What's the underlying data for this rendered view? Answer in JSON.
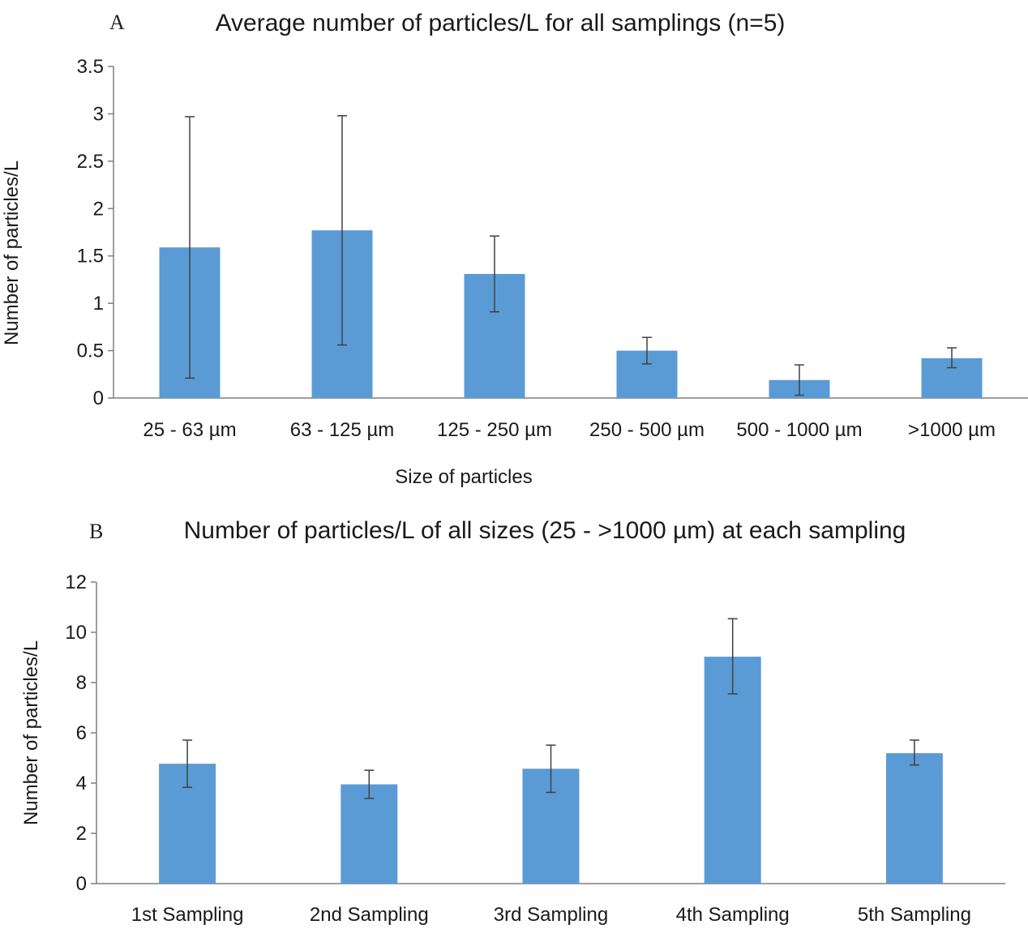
{
  "chart_data": [
    {
      "type": "bar",
      "panel_label": "A",
      "title": "Average number of particles/L for all samplings (n=5)",
      "xlabel": "Size of particles",
      "ylabel": "Number of particles/L",
      "categories": [
        "25 - 63 µm",
        "63 - 125 µm",
        "125 - 250 µm",
        "250 - 500 µm",
        "500 - 1000 µm",
        ">1000 µm"
      ],
      "values": [
        1.59,
        1.77,
        1.31,
        0.5,
        0.19,
        0.42
      ],
      "error_low": [
        0.21,
        0.56,
        0.91,
        0.36,
        0.03,
        0.32
      ],
      "error_high": [
        2.97,
        2.98,
        1.71,
        0.64,
        0.35,
        0.53
      ],
      "ylim": [
        0,
        3.5
      ],
      "yticks": [
        "0",
        "0.5",
        "1",
        "1.5",
        "2",
        "2.5",
        "3",
        "3.5"
      ],
      "ytick_values": [
        0,
        0.5,
        1,
        1.5,
        2,
        2.5,
        3,
        3.5
      ],
      "bar_color": "#5b9bd5",
      "grid": false
    },
    {
      "type": "bar",
      "panel_label": "B",
      "title": "Number of particles/L of all sizes (25 - >1000 µm) at each sampling",
      "xlabel": "",
      "ylabel": "Number of particles/L",
      "categories": [
        "1st Sampling",
        "2nd Sampling",
        "3rd Sampling",
        "4th Sampling",
        "5th Sampling"
      ],
      "values": [
        4.77,
        3.95,
        4.57,
        9.03,
        5.19
      ],
      "error_low": [
        3.83,
        3.39,
        3.63,
        7.55,
        4.72
      ],
      "error_high": [
        5.71,
        4.51,
        5.51,
        10.54,
        5.71
      ],
      "ylim": [
        0,
        12
      ],
      "yticks": [
        "0",
        "2",
        "4",
        "6",
        "8",
        "10",
        "12"
      ],
      "ytick_values": [
        0,
        2,
        4,
        6,
        8,
        10,
        12
      ],
      "bar_color": "#5b9bd5",
      "grid": false
    }
  ]
}
